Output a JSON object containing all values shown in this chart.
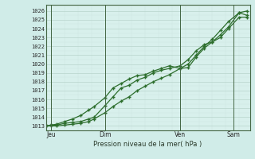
{
  "title": "",
  "xlabel": "Pression niveau de la mer( hPa )",
  "ylabel": "",
  "background_color": "#d0ece8",
  "plot_bg_color": "#d8f0ec",
  "grid_color_major": "#b8d4cc",
  "grid_color_minor": "#cce4e0",
  "line_color": "#2d6e2d",
  "ylim": [
    1012.5,
    1026.7
  ],
  "xlim": [
    0,
    76
  ],
  "yticks": [
    1013,
    1014,
    1015,
    1016,
    1017,
    1018,
    1019,
    1020,
    1021,
    1022,
    1023,
    1024,
    1025,
    1026
  ],
  "xtick_positions": [
    2,
    22,
    50,
    70
  ],
  "xtick_labels": [
    "Jeu",
    "Dim",
    "Ven",
    "Sam"
  ],
  "vline_positions": [
    2,
    22,
    50,
    70
  ],
  "series1_x": [
    0,
    2,
    4,
    7,
    10,
    13,
    16,
    18,
    22,
    25,
    28,
    31,
    34,
    37,
    40,
    43,
    46,
    50,
    53,
    56,
    59,
    62,
    65,
    68,
    72,
    75
  ],
  "series1_y": [
    1013.0,
    1013.1,
    1013.1,
    1013.3,
    1013.4,
    1013.5,
    1013.8,
    1014.0,
    1015.3,
    1016.3,
    1017.3,
    1017.6,
    1018.2,
    1018.5,
    1019.0,
    1019.3,
    1019.5,
    1019.8,
    1020.5,
    1021.5,
    1022.2,
    1022.5,
    1023.0,
    1024.0,
    1025.3,
    1025.3
  ],
  "series2_x": [
    0,
    2,
    4,
    7,
    10,
    13,
    16,
    18,
    22,
    25,
    28,
    31,
    34,
    37,
    40,
    43,
    46,
    50,
    53,
    56,
    59,
    62,
    65,
    68,
    72,
    75
  ],
  "series2_y": [
    1013.0,
    1013.1,
    1013.2,
    1013.5,
    1013.8,
    1014.2,
    1014.8,
    1015.2,
    1016.2,
    1017.3,
    1017.8,
    1018.3,
    1018.7,
    1018.8,
    1019.2,
    1019.5,
    1019.8,
    1019.5,
    1019.6,
    1020.8,
    1021.8,
    1022.5,
    1023.3,
    1024.2,
    1025.8,
    1026.0
  ],
  "series3_x": [
    0,
    2,
    4,
    7,
    10,
    13,
    16,
    18,
    22,
    25,
    28,
    31,
    34,
    37,
    40,
    43,
    46,
    50,
    53,
    56,
    59,
    62,
    65,
    68,
    72,
    75
  ],
  "series3_y": [
    1013.0,
    1013.0,
    1013.0,
    1013.1,
    1013.2,
    1013.3,
    1013.5,
    1013.8,
    1014.5,
    1015.2,
    1015.8,
    1016.3,
    1017.0,
    1017.5,
    1018.0,
    1018.4,
    1018.8,
    1019.5,
    1020.0,
    1021.0,
    1022.0,
    1022.8,
    1023.8,
    1024.8,
    1025.8,
    1025.5
  ]
}
